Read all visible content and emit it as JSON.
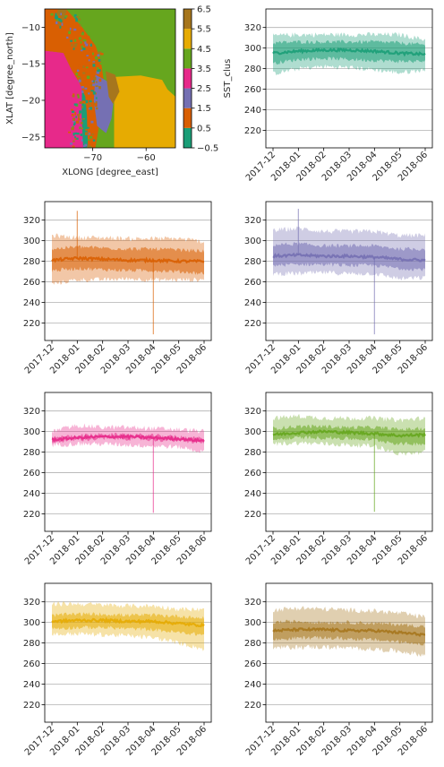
{
  "chart_data": [
    {
      "type": "heatmap",
      "xlabel": "XLONG [degree_east]",
      "ylabel": "XLAT [degree_north]",
      "xticks": [
        -70,
        -60
      ],
      "yticks": [
        -10,
        -15,
        -20,
        -25
      ],
      "xlim": [
        -79,
        -54.5
      ],
      "ylim": [
        -26.5,
        -7.5
      ],
      "colorbar": {
        "label": "SST_clus",
        "ticks": [
          -0.5,
          0.5,
          1.5,
          2.5,
          3.5,
          4.5,
          5.5,
          6.5
        ],
        "colors": [
          "#1b9e77",
          "#d95f02",
          "#7570b3",
          "#e7298a",
          "#66a61e",
          "#e6ab02",
          "#a6761d"
        ]
      },
      "clusters": [
        0,
        1,
        2,
        3,
        4,
        5,
        6
      ]
    },
    {
      "type": "area",
      "cluster": 0,
      "color": "#1b9e77",
      "ylim": [
        203,
        338
      ],
      "yticks": [
        220,
        240,
        260,
        280,
        300,
        320
      ],
      "xticks": [
        "2017-12",
        "2018-01",
        "2018-02",
        "2018-03",
        "2018-04",
        "2018-05",
        "2018-06"
      ],
      "x": [
        "2017-12",
        "2018-01",
        "2018-02",
        "2018-03",
        "2018-04",
        "2018-05",
        "2018-06"
      ],
      "mean": [
        295,
        297,
        298,
        298,
        297,
        295,
        294
      ],
      "band_inner": [
        [
          285,
          305
        ],
        [
          289,
          306
        ],
        [
          290,
          306
        ],
        [
          289,
          306
        ],
        [
          288,
          306
        ],
        [
          287,
          305
        ],
        [
          287,
          303
        ]
      ],
      "band_outer": [
        [
          275,
          312
        ],
        [
          280,
          313
        ],
        [
          282,
          313
        ],
        [
          281,
          313
        ],
        [
          279,
          313
        ],
        [
          276,
          313
        ],
        [
          279,
          308
        ]
      ],
      "spikes": []
    },
    {
      "type": "area",
      "cluster": 1,
      "color": "#d95f02",
      "ylim": [
        203,
        338
      ],
      "yticks": [
        220,
        240,
        260,
        280,
        300,
        320
      ],
      "xticks": [
        "2017-12",
        "2018-01",
        "2018-02",
        "2018-03",
        "2018-04",
        "2018-05",
        "2018-06"
      ],
      "x": [
        "2017-12",
        "2018-01",
        "2018-02",
        "2018-03",
        "2018-04",
        "2018-05",
        "2018-06"
      ],
      "mean": [
        281,
        283,
        282,
        281,
        281,
        280,
        280
      ],
      "band_inner": [
        [
          271,
          292
        ],
        [
          273,
          294
        ],
        [
          272,
          293
        ],
        [
          271,
          292
        ],
        [
          271,
          292
        ],
        [
          270,
          291
        ],
        [
          268,
          290
        ]
      ],
      "band_outer": [
        [
          258,
          305
        ],
        [
          262,
          303
        ],
        [
          262,
          303
        ],
        [
          263,
          302
        ],
        [
          262,
          302
        ],
        [
          262,
          302
        ],
        [
          262,
          299
        ]
      ],
      "spikes": [
        {
          "x": "2018-01",
          "y": 329
        },
        {
          "x": "2018-04",
          "y": 209
        }
      ]
    },
    {
      "type": "area",
      "cluster": 2,
      "color": "#7570b3",
      "ylim": [
        203,
        338
      ],
      "yticks": [
        220,
        240,
        260,
        280,
        300,
        320
      ],
      "xticks": [
        "2017-12",
        "2018-01",
        "2018-02",
        "2018-03",
        "2018-04",
        "2018-05",
        "2018-06"
      ],
      "x": [
        "2017-12",
        "2018-01",
        "2018-02",
        "2018-03",
        "2018-04",
        "2018-05",
        "2018-06"
      ],
      "mean": [
        285,
        286,
        285,
        285,
        284,
        282,
        281
      ],
      "band_inner": [
        [
          276,
          296
        ],
        [
          277,
          297
        ],
        [
          277,
          295
        ],
        [
          276,
          295
        ],
        [
          276,
          295
        ],
        [
          273,
          292
        ],
        [
          272,
          292
        ]
      ],
      "band_outer": [
        [
          268,
          310
        ],
        [
          268,
          312
        ],
        [
          269,
          309
        ],
        [
          268,
          309
        ],
        [
          268,
          309
        ],
        [
          263,
          305
        ],
        [
          264,
          305
        ]
      ],
      "spikes": [
        {
          "x": "2018-01",
          "y": 331
        },
        {
          "x": "2018-04",
          "y": 209
        }
      ]
    },
    {
      "type": "area",
      "cluster": 3,
      "color": "#e7298a",
      "ylim": [
        203,
        338
      ],
      "yticks": [
        220,
        240,
        260,
        280,
        300,
        320
      ],
      "xticks": [
        "2017-12",
        "2018-01",
        "2018-02",
        "2018-03",
        "2018-04",
        "2018-05",
        "2018-06"
      ],
      "x": [
        "2017-12",
        "2018-01",
        "2018-02",
        "2018-03",
        "2018-04",
        "2018-05",
        "2018-06"
      ],
      "mean": [
        292,
        294,
        295,
        295,
        294,
        293,
        291
      ],
      "band_inner": [
        [
          290,
          294
        ],
        [
          292,
          296
        ],
        [
          293,
          297
        ],
        [
          293,
          297
        ],
        [
          292,
          296
        ],
        [
          291,
          295
        ],
        [
          289,
          293
        ]
      ],
      "band_outer": [
        [
          287,
          300
        ],
        [
          288,
          306
        ],
        [
          288,
          304
        ],
        [
          287,
          304
        ],
        [
          286,
          303
        ],
        [
          285,
          302
        ],
        [
          280,
          300
        ]
      ],
      "spikes": [
        {
          "x": "2018-04",
          "y": 221
        }
      ]
    },
    {
      "type": "area",
      "cluster": 4,
      "color": "#66a61e",
      "ylim": [
        203,
        338
      ],
      "yticks": [
        220,
        240,
        260,
        280,
        300,
        320
      ],
      "xticks": [
        "2017-12",
        "2018-01",
        "2018-02",
        "2018-03",
        "2018-04",
        "2018-05",
        "2018-06"
      ],
      "x": [
        "2017-12",
        "2018-01",
        "2018-02",
        "2018-03",
        "2018-04",
        "2018-05",
        "2018-06"
      ],
      "mean": [
        297,
        299,
        300,
        299,
        298,
        296,
        297
      ],
      "band_inner": [
        [
          292,
          303
        ],
        [
          294,
          305
        ],
        [
          294,
          305
        ],
        [
          293,
          304
        ],
        [
          292,
          304
        ],
        [
          288,
          302
        ],
        [
          288,
          303
        ]
      ],
      "band_outer": [
        [
          288,
          313
        ],
        [
          289,
          315
        ],
        [
          288,
          313
        ],
        [
          287,
          313
        ],
        [
          286,
          313
        ],
        [
          278,
          311
        ],
        [
          280,
          313
        ]
      ],
      "spikes": [
        {
          "x": "2018-04",
          "y": 222
        }
      ]
    },
    {
      "type": "area",
      "cluster": 5,
      "color": "#e6ab02",
      "ylim": [
        203,
        338
      ],
      "yticks": [
        220,
        240,
        260,
        280,
        300,
        320
      ],
      "xticks": [
        "2017-12",
        "2018-01",
        "2018-02",
        "2018-03",
        "2018-04",
        "2018-05",
        "2018-06"
      ],
      "x": [
        "2017-12",
        "2018-01",
        "2018-02",
        "2018-03",
        "2018-04",
        "2018-05",
        "2018-06"
      ],
      "mean": [
        301,
        302,
        302,
        301,
        301,
        299,
        297
      ],
      "band_inner": [
        [
          294,
          307
        ],
        [
          295,
          308
        ],
        [
          295,
          308
        ],
        [
          294,
          307
        ],
        [
          293,
          307
        ],
        [
          290,
          306
        ],
        [
          288,
          304
        ]
      ],
      "band_outer": [
        [
          288,
          318
        ],
        [
          289,
          318
        ],
        [
          288,
          317
        ],
        [
          287,
          316
        ],
        [
          285,
          316
        ],
        [
          280,
          313
        ],
        [
          274,
          312
        ]
      ],
      "spikes": []
    },
    {
      "type": "area",
      "cluster": 6,
      "color": "#a6761d",
      "ylim": [
        203,
        338
      ],
      "yticks": [
        220,
        240,
        260,
        280,
        300,
        320
      ],
      "xticks": [
        "2017-12",
        "2018-01",
        "2018-02",
        "2018-03",
        "2018-04",
        "2018-05",
        "2018-06"
      ],
      "x": [
        "2017-12",
        "2018-01",
        "2018-02",
        "2018-03",
        "2018-04",
        "2018-05",
        "2018-06"
      ],
      "mean": [
        292,
        293,
        293,
        292,
        292,
        290,
        288
      ],
      "band_inner": [
        [
          283,
          300
        ],
        [
          285,
          301
        ],
        [
          285,
          300
        ],
        [
          284,
          300
        ],
        [
          283,
          299
        ],
        [
          281,
          298
        ],
        [
          279,
          296
        ]
      ],
      "band_outer": [
        [
          275,
          312
        ],
        [
          276,
          314
        ],
        [
          276,
          313
        ],
        [
          275,
          312
        ],
        [
          274,
          311
        ],
        [
          272,
          309
        ],
        [
          268,
          305
        ]
      ],
      "spikes": []
    }
  ]
}
